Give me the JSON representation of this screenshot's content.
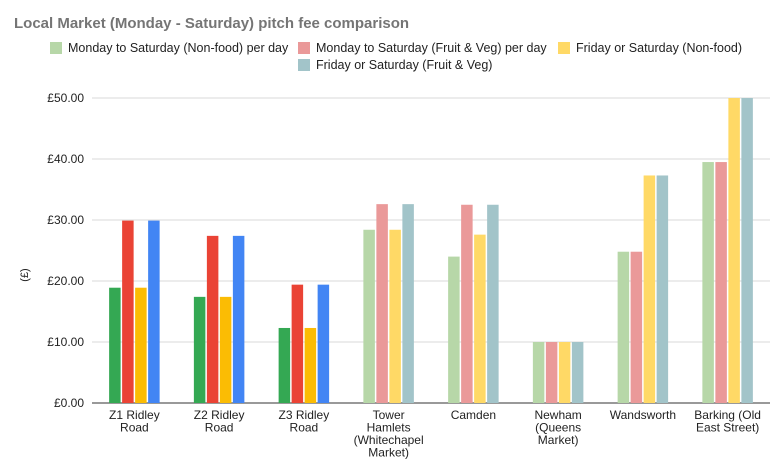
{
  "chart_data": {
    "type": "bar",
    "title": "Local Market (Monday - Saturday) pitch fee comparison",
    "ylabel": "(£)",
    "xlabel": "",
    "ylim": [
      0,
      50
    ],
    "yticks": [
      "£0.00",
      "£10.00",
      "£20.00",
      "£30.00",
      "£40.00",
      "£50.00"
    ],
    "ytick_values": [
      0,
      10,
      20,
      30,
      40,
      50
    ],
    "grid": true,
    "legend_position": "top",
    "categories": [
      [
        "Z1 Ridley",
        "Road"
      ],
      [
        "Z2 Ridley",
        "Road"
      ],
      [
        "Z3 Ridley",
        "Road"
      ],
      [
        "Tower",
        "Hamlets",
        "(Whitechapel",
        "Market)"
      ],
      [
        "Camden"
      ],
      [
        "Newham",
        "(Queens",
        "Market)"
      ],
      [
        "Wandsworth"
      ],
      [
        "Barking (Old",
        "East Street)"
      ]
    ],
    "series": [
      {
        "name": "Monday to Saturday (Non-food) per day",
        "color": "#b7d7a8",
        "values": [
          18.9,
          17.4,
          12.3,
          28.4,
          24.0,
          10.0,
          24.8,
          39.5
        ]
      },
      {
        "name": "Monday to Saturday (Fruit & Veg) per day",
        "color": "#ea9999",
        "values": [
          29.9,
          27.4,
          19.4,
          32.6,
          32.5,
          10.0,
          24.8,
          39.5
        ]
      },
      {
        "name": "Friday or Saturday (Non-food)",
        "color": "#ffd966",
        "values": [
          18.9,
          17.4,
          12.3,
          28.4,
          27.6,
          10.0,
          37.3,
          50.0
        ]
      },
      {
        "name": "Friday or Saturday (Fruit & Veg)",
        "color": "#a2c4c9",
        "values": [
          29.9,
          27.4,
          19.4,
          32.6,
          32.5,
          10.0,
          37.3,
          50.0
        ]
      }
    ],
    "highlight_colors": {
      "categories": [
        0,
        1,
        2
      ],
      "colors": [
        "#34a853",
        "#ea4335",
        "#fbbc04",
        "#4285f4"
      ]
    }
  }
}
